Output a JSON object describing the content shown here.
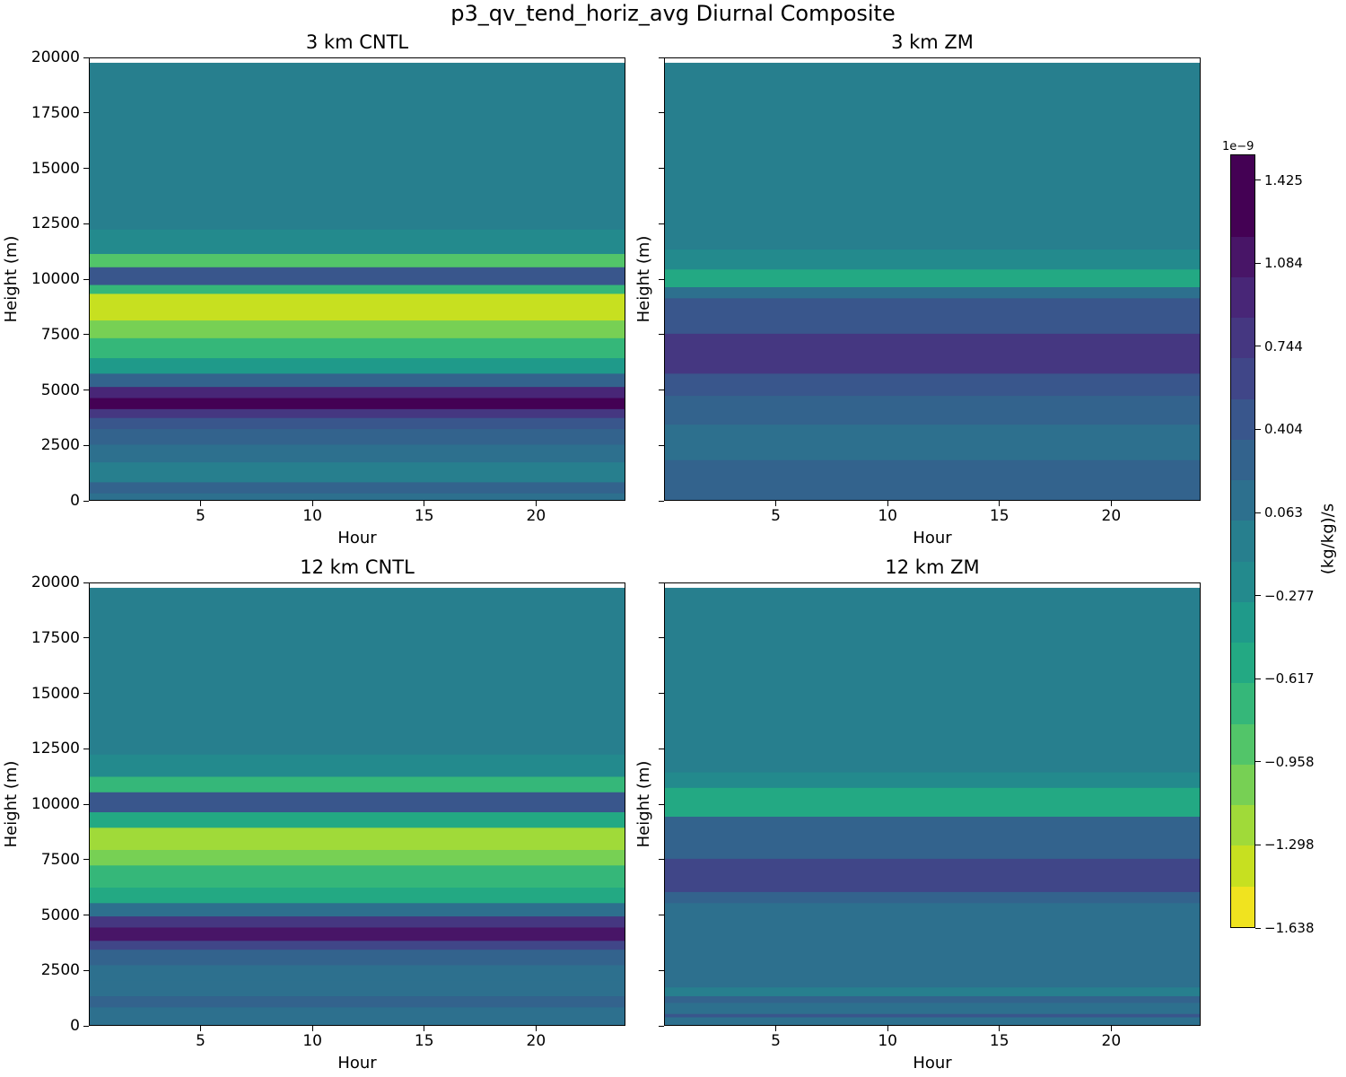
{
  "chart_data": {
    "type": "heatmap",
    "title": "p3_qv_tend_horiz_avg Diurnal Composite",
    "colorbar": {
      "label": "(kg/kg)/s",
      "exponent_label": "1e−9",
      "tick_labels": [
        "1.425",
        "1.084",
        "0.744",
        "0.404",
        "0.063",
        "−0.277",
        "−0.617",
        "−0.958",
        "−1.298",
        "−1.638"
      ],
      "tick_values": [
        1.425,
        1.084,
        0.744,
        0.404,
        0.063,
        -0.277,
        -0.617,
        -0.958,
        -1.298,
        -1.638
      ],
      "vmin": -1.638,
      "vmax": 1.53,
      "levels": 19,
      "colors_low_to_high": [
        "#f0e31f",
        "#c7e020",
        "#a0da39",
        "#77d054",
        "#52c569",
        "#35b779",
        "#23a983",
        "#1f9a8a",
        "#238a8d",
        "#277f8e",
        "#2d708e",
        "#33638d",
        "#39568c",
        "#404688",
        "#453781",
        "#482677",
        "#481567",
        "#440154",
        "#440154"
      ]
    },
    "panels": [
      {
        "title": "3 km CNTL",
        "xlabel": "Hour",
        "ylabel": "Height (m)",
        "xlim": [
          0,
          24
        ],
        "ylim": [
          0,
          20000
        ],
        "x_ticks": [
          5,
          10,
          15,
          20
        ],
        "y_ticks": [
          0,
          2500,
          5000,
          7500,
          10000,
          12500,
          15000,
          17500,
          20000
        ],
        "y_tick_labels_shown": true,
        "bands": [
          {
            "z": [
              0,
              400
            ],
            "v": 0.1
          },
          {
            "z": [
              400,
              900
            ],
            "v": 0.3
          },
          {
            "z": [
              900,
              1800
            ],
            "v": 0.0
          },
          {
            "z": [
              1800,
              2600
            ],
            "v": 0.1
          },
          {
            "z": [
              2600,
              3300
            ],
            "v": 0.25
          },
          {
            "z": [
              3300,
              3800
            ],
            "v": 0.4
          },
          {
            "z": [
              3800,
              4200
            ],
            "v": 0.8
          },
          {
            "z": [
              4200,
              4700
            ],
            "v": 1.35
          },
          {
            "z": [
              4700,
              5200
            ],
            "v": 1.0
          },
          {
            "z": [
              5200,
              5800
            ],
            "v": 0.2
          },
          {
            "z": [
              5800,
              6500
            ],
            "v": -0.4
          },
          {
            "z": [
              6500,
              7400
            ],
            "v": -0.8
          },
          {
            "z": [
              7400,
              8200
            ],
            "v": -1.05
          },
          {
            "z": [
              8200,
              9400
            ],
            "v": -1.4
          },
          {
            "z": [
              9400,
              9800
            ],
            "v": -0.8
          },
          {
            "z": [
              9800,
              10600
            ],
            "v": 0.45
          },
          {
            "z": [
              10600,
              11200
            ],
            "v": -0.9
          },
          {
            "z": [
              11200,
              12300
            ],
            "v": -0.3
          },
          {
            "z": [
              12300,
              19800
            ],
            "v": -0.05
          }
        ]
      },
      {
        "title": "3 km ZM",
        "xlabel": "Hour",
        "ylabel": "Height (m)",
        "xlim": [
          0,
          24
        ],
        "ylim": [
          0,
          20000
        ],
        "x_ticks": [
          5,
          10,
          15,
          20
        ],
        "y_ticks": [
          0,
          2500,
          5000,
          7500,
          10000,
          12500,
          15000,
          17500,
          20000
        ],
        "y_tick_labels_shown": false,
        "bands": [
          {
            "z": [
              0,
              1900
            ],
            "v": 0.2
          },
          {
            "z": [
              1900,
              3500
            ],
            "v": 0.05
          },
          {
            "z": [
              3500,
              4800
            ],
            "v": 0.35
          },
          {
            "z": [
              4800,
              5800
            ],
            "v": 0.5
          },
          {
            "z": [
              5800,
              7600
            ],
            "v": 0.7
          },
          {
            "z": [
              7600,
              9200
            ],
            "v": 0.4
          },
          {
            "z": [
              9200,
              9700
            ],
            "v": 0.1
          },
          {
            "z": [
              9700,
              10500
            ],
            "v": -0.6
          },
          {
            "z": [
              10500,
              11400
            ],
            "v": -0.3
          },
          {
            "z": [
              11400,
              19800
            ],
            "v": -0.05
          }
        ]
      },
      {
        "title": "12 km CNTL",
        "xlabel": "Hour",
        "ylabel": "Height (m)",
        "xlim": [
          0,
          24
        ],
        "ylim": [
          0,
          20000
        ],
        "x_ticks": [
          5,
          10,
          15,
          20
        ],
        "y_ticks": [
          0,
          2500,
          5000,
          7500,
          10000,
          12500,
          15000,
          17500,
          20000
        ],
        "y_tick_labels_shown": true,
        "bands": [
          {
            "z": [
              0,
              900
            ],
            "v": 0.1
          },
          {
            "z": [
              900,
              1400
            ],
            "v": 0.25
          },
          {
            "z": [
              1400,
              2100
            ],
            "v": 0.05
          },
          {
            "z": [
              2100,
              2800
            ],
            "v": 0.15
          },
          {
            "z": [
              2800,
              3500
            ],
            "v": 0.3
          },
          {
            "z": [
              3500,
              3900
            ],
            "v": 0.6
          },
          {
            "z": [
              3900,
              4500
            ],
            "v": 1.15
          },
          {
            "z": [
              4500,
              5000
            ],
            "v": 0.7
          },
          {
            "z": [
              5000,
              5600
            ],
            "v": 0.1
          },
          {
            "z": [
              5600,
              6300
            ],
            "v": -0.5
          },
          {
            "z": [
              6300,
              7300
            ],
            "v": -0.7
          },
          {
            "z": [
              7300,
              8000
            ],
            "v": -1.0
          },
          {
            "z": [
              8000,
              9000
            ],
            "v": -1.25
          },
          {
            "z": [
              9000,
              9700
            ],
            "v": -0.6
          },
          {
            "z": [
              9700,
              10600
            ],
            "v": 0.45
          },
          {
            "z": [
              10600,
              11300
            ],
            "v": -0.8
          },
          {
            "z": [
              11300,
              12300
            ],
            "v": -0.3
          },
          {
            "z": [
              12300,
              19800
            ],
            "v": -0.05
          }
        ]
      },
      {
        "title": "12 km ZM",
        "xlabel": "Hour",
        "ylabel": "Height (m)",
        "xlim": [
          0,
          24
        ],
        "ylim": [
          0,
          20000
        ],
        "x_ticks": [
          5,
          10,
          15,
          20
        ],
        "y_ticks": [
          0,
          2500,
          5000,
          7500,
          10000,
          12500,
          15000,
          17500,
          20000
        ],
        "y_tick_labels_shown": false,
        "bands": [
          {
            "z": [
              0,
              450
            ],
            "v": 0.1
          },
          {
            "z": [
              450,
              600
            ],
            "v": 0.5
          },
          {
            "z": [
              600,
              1100
            ],
            "v": 0.05
          },
          {
            "z": [
              1100,
              1400
            ],
            "v": 0.3
          },
          {
            "z": [
              1400,
              1800
            ],
            "v": -0.1
          },
          {
            "z": [
              1800,
              5600
            ],
            "v": 0.05
          },
          {
            "z": [
              5600,
              6100
            ],
            "v": 0.35
          },
          {
            "z": [
              6100,
              7600
            ],
            "v": 0.6
          },
          {
            "z": [
              7600,
              9500
            ],
            "v": 0.25
          },
          {
            "z": [
              9500,
              10800
            ],
            "v": -0.55
          },
          {
            "z": [
              10800,
              11500
            ],
            "v": -0.25
          },
          {
            "z": [
              11500,
              19800
            ],
            "v": -0.05
          }
        ]
      }
    ]
  }
}
